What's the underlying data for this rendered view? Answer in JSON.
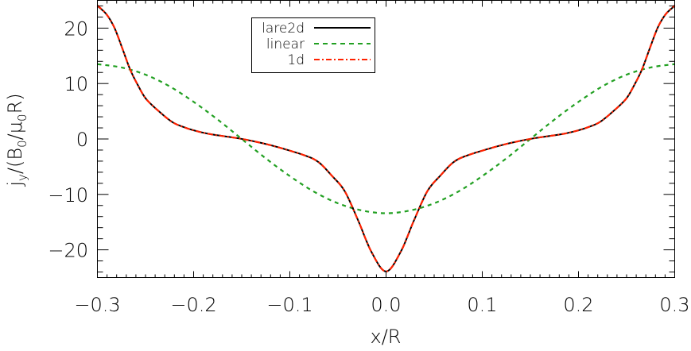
{
  "chart_data": {
    "type": "line",
    "title": "",
    "xlabel": "x/R",
    "ylabel_parts": {
      "j": "j",
      "y": "y",
      "mid": "/(B",
      "zero1": "0",
      "slash": "/",
      "mu": "μ",
      "zero2": "0",
      "end": "R)"
    },
    "xlim": [
      -0.3,
      0.3
    ],
    "ylim": [
      -25,
      25
    ],
    "xticks": [
      -0.3,
      -0.2,
      -0.1,
      0.0,
      0.1,
      0.2,
      0.3
    ],
    "xtick_labels": [
      "−0.3",
      "−0.2",
      "−0.1",
      "0.0",
      "0.1",
      "0.2",
      "0.3"
    ],
    "yticks": [
      -20,
      -10,
      0,
      10,
      20
    ],
    "ytick_labels": [
      "−20",
      "−10",
      "0",
      "10",
      "20"
    ],
    "x_minor_step": 0.01,
    "y_minor_step": 2,
    "grid": false,
    "legend_position": "top-left-center",
    "series": [
      {
        "name": "lare2d",
        "color": "#000000",
        "style": "solid",
        "symmetric": true,
        "x_half": [
          0,
          0.0151,
          0.029,
          0.043,
          0.0565,
          0.07,
          0.084,
          0.112,
          0.13,
          0.1529,
          0.1804,
          0.1942,
          0.208,
          0.2217,
          0.2355,
          0.2493,
          0.2576,
          0.2659,
          0.274,
          0.2824,
          0.2906,
          0.3
        ],
        "y_half": [
          -23.9,
          -20.4,
          -14.7,
          -9.4,
          -6.6,
          -4.2,
          -3.0,
          -1.5,
          -0.7,
          0.1,
          0.8,
          1.3,
          2.0,
          3.0,
          4.9,
          7.2,
          9.6,
          12.5,
          16.3,
          20.1,
          22.5,
          24.0
        ]
      },
      {
        "name": "linear",
        "color": "#22a022",
        "style": "dashed",
        "symmetric": true,
        "x_half": [
          0,
          0.025,
          0.05,
          0.075,
          0.1,
          0.125,
          0.15,
          0.175,
          0.2,
          0.225,
          0.25,
          0.275,
          0.3
        ],
        "y_half": [
          -13.4,
          -12.9,
          -11.6,
          -9.5,
          -6.7,
          -3.5,
          0.0,
          3.5,
          6.7,
          9.5,
          11.6,
          12.9,
          13.5
        ]
      },
      {
        "name": "1d",
        "color": "#ff2200",
        "style": "dash-dot",
        "symmetric": true,
        "x_half": [
          0,
          0.0151,
          0.029,
          0.043,
          0.0565,
          0.07,
          0.084,
          0.112,
          0.13,
          0.1529,
          0.1804,
          0.1942,
          0.208,
          0.2217,
          0.2355,
          0.2493,
          0.2576,
          0.2659,
          0.274,
          0.2824,
          0.2906,
          0.3
        ],
        "y_half": [
          -23.9,
          -20.4,
          -14.7,
          -9.4,
          -6.6,
          -4.2,
          -3.0,
          -1.5,
          -0.7,
          0.1,
          0.8,
          1.3,
          2.0,
          3.0,
          4.9,
          7.2,
          9.6,
          12.5,
          16.3,
          20.1,
          22.5,
          24.1
        ]
      }
    ]
  }
}
